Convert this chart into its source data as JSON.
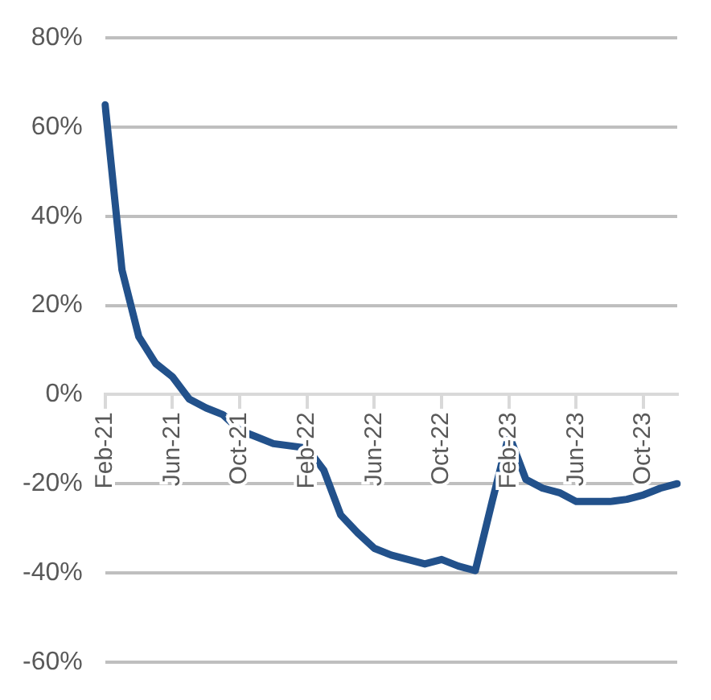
{
  "chart_data": {
    "type": "line",
    "categories": [
      "Feb-21",
      null,
      null,
      null,
      "Jun-21",
      null,
      null,
      null,
      "Oct-21",
      null,
      null,
      null,
      "Feb-22",
      null,
      null,
      null,
      "Jun-22",
      null,
      null,
      null,
      "Oct-22",
      null,
      null,
      null,
      "Feb-23",
      null,
      null,
      null,
      "Jun-23",
      null,
      null,
      null,
      "Oct-23",
      null,
      null
    ],
    "series": [
      {
        "color": "#22518b",
        "values": [
          65,
          28,
          13,
          7,
          4,
          -1,
          -3,
          -4.5,
          -8,
          -9.5,
          -11,
          -11.5,
          -12,
          -17,
          -27,
          -31,
          -34.5,
          -36,
          -37,
          -38,
          -37,
          -38.5,
          -39.5,
          -24,
          -9,
          -19,
          -21,
          -22,
          -24,
          -24,
          -24,
          -23.5,
          -22.5,
          -21,
          -20
        ]
      }
    ],
    "ylim": [
      -60,
      80
    ],
    "yticks": [
      {
        "value": -60,
        "label": "-60%"
      },
      {
        "value": -40,
        "label": "-40%"
      },
      {
        "value": -20,
        "label": "-20%"
      },
      {
        "value": 0,
        "label": "0%"
      },
      {
        "value": 20,
        "label": "20%"
      },
      {
        "value": 40,
        "label": "40%"
      },
      {
        "value": 60,
        "label": "60%"
      },
      {
        "value": 80,
        "label": "80%"
      }
    ],
    "grid": "y",
    "legend": false,
    "marker": "none",
    "line_style": "solid"
  }
}
